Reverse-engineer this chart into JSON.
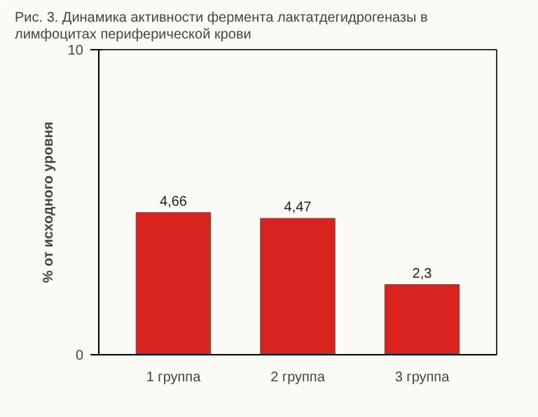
{
  "chart_data": {
    "type": "bar",
    "title": "Рис. 3. Динамика активности фермента лактатдегидрогеназы в лимфоцитах периферической крови",
    "ylabel": "% от исходного уровня",
    "categories": [
      "1 группа",
      "2 группа",
      "3 группа"
    ],
    "values": [
      4.66,
      4.47,
      2.3
    ],
    "value_labels": [
      "4,66",
      "4,47",
      "2,3"
    ],
    "color": "#d8231f",
    "ylim": [
      0,
      10
    ],
    "yticks": [
      0,
      10
    ],
    "grid": false
  }
}
